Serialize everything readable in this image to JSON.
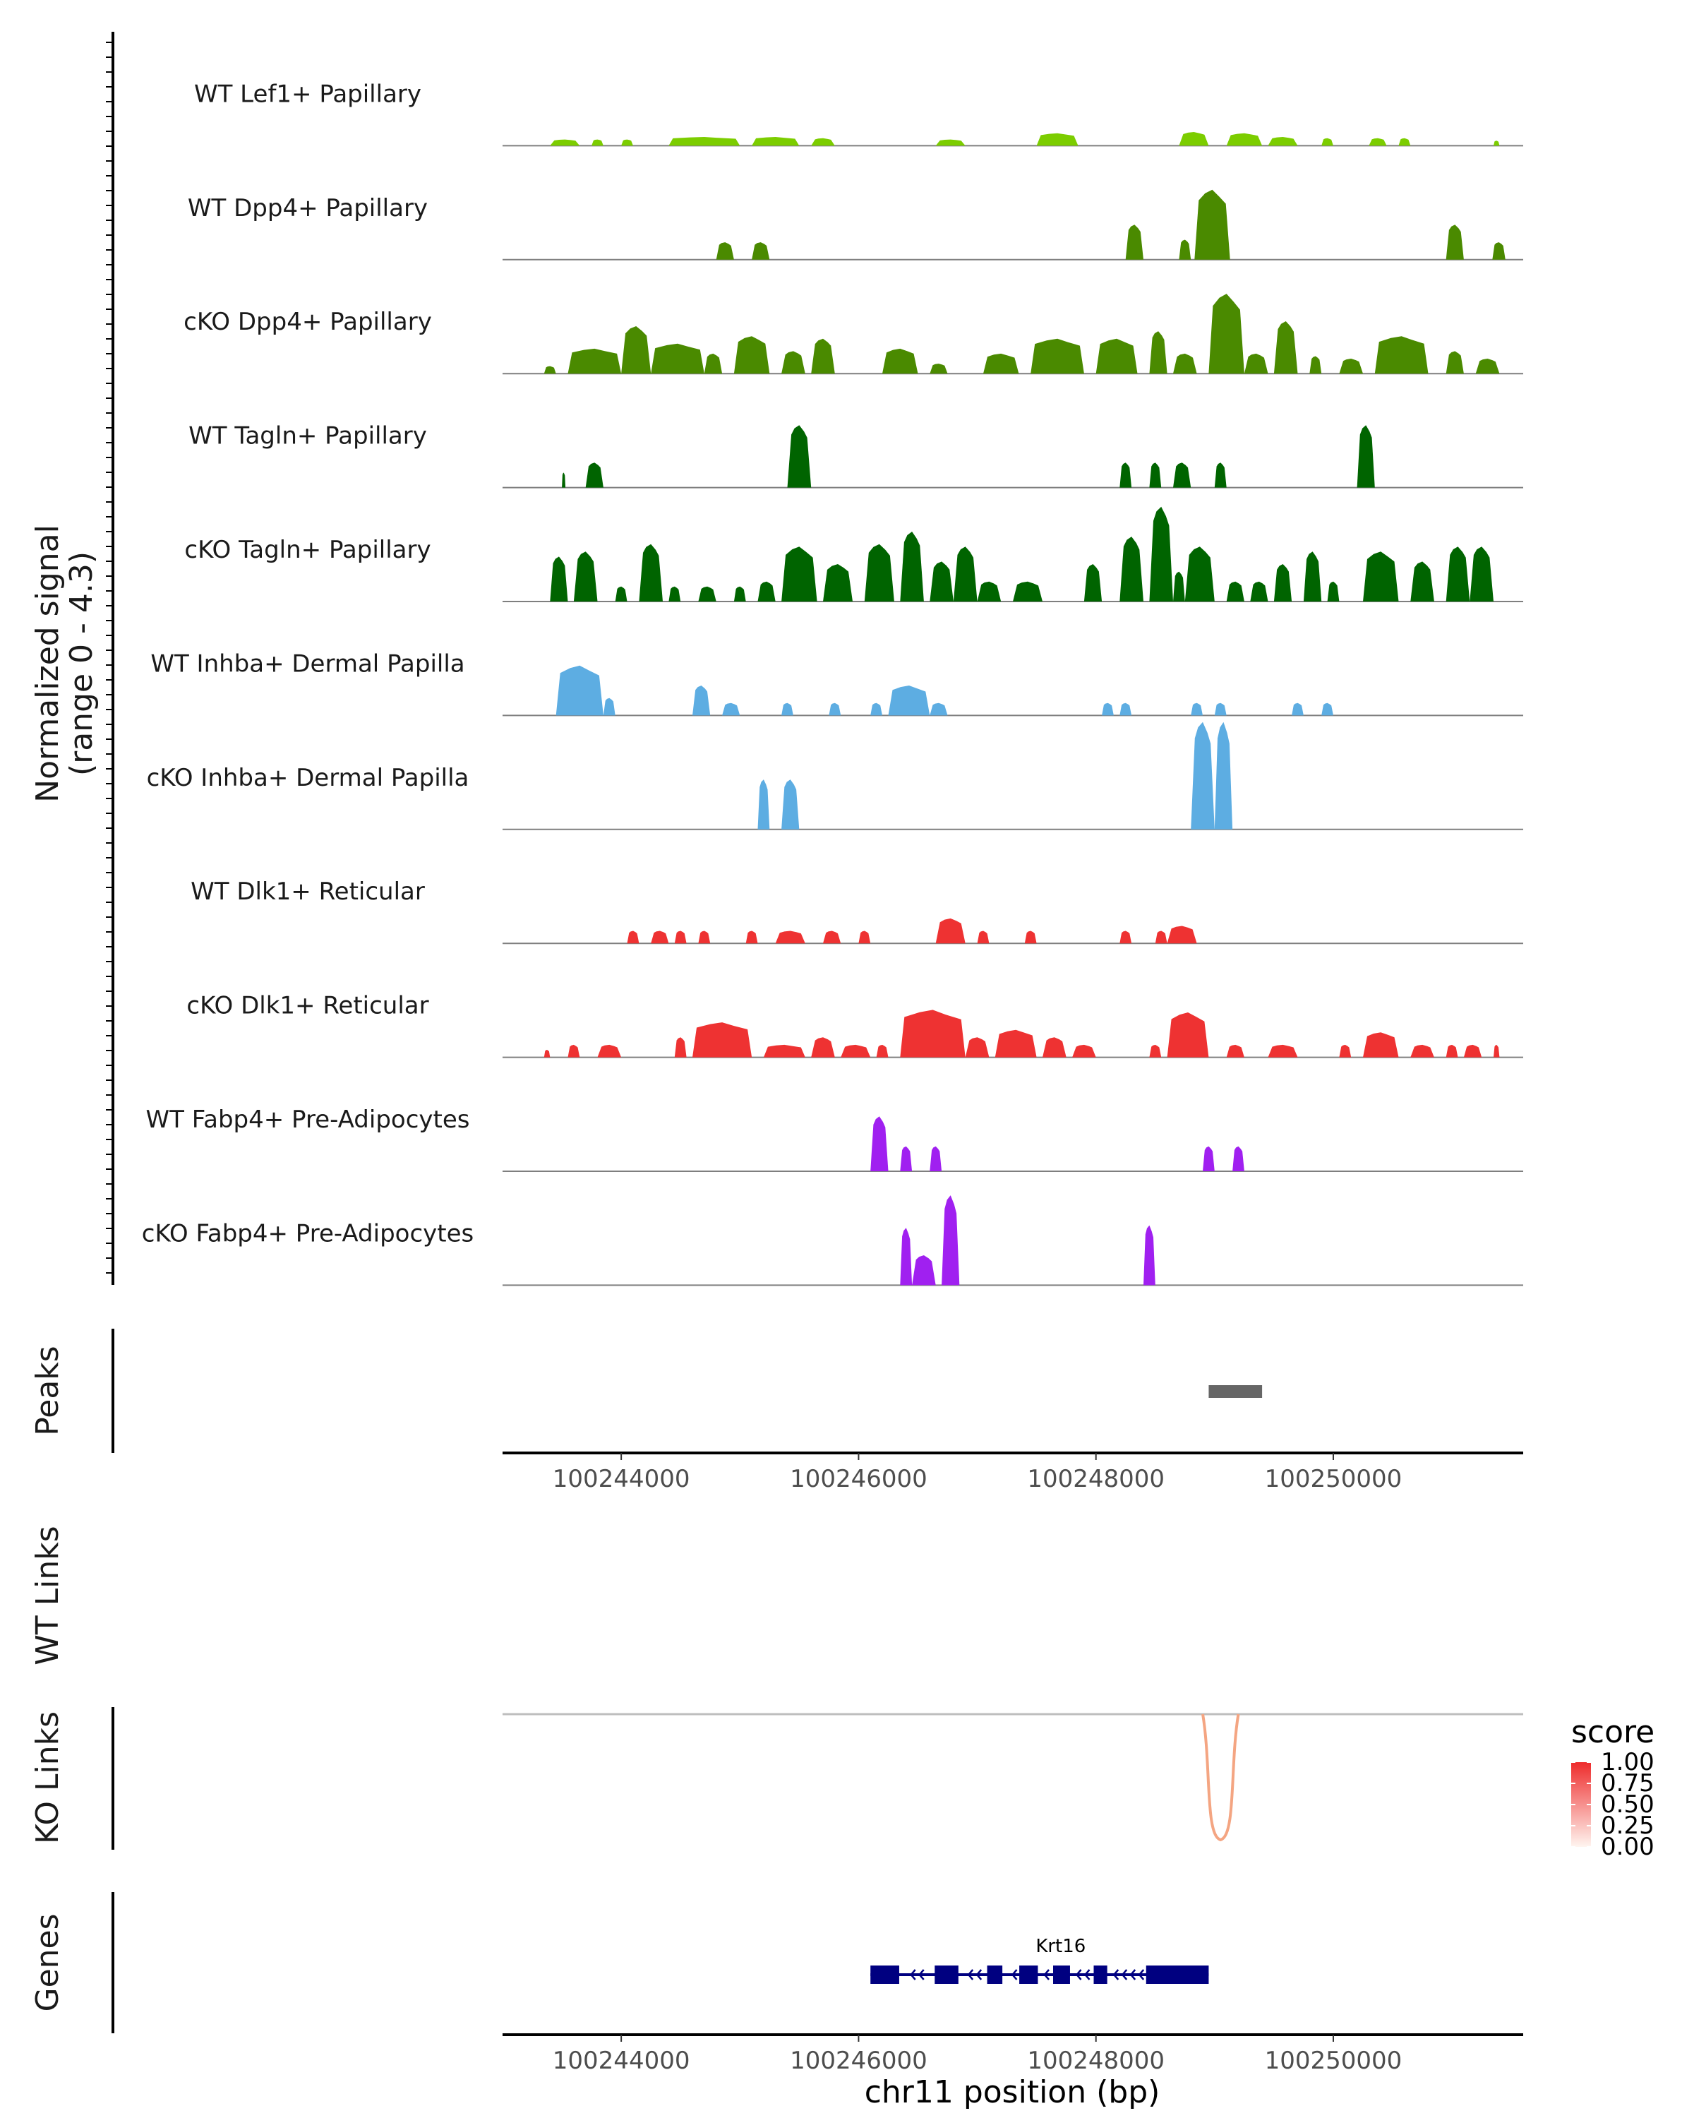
{
  "chart_data": {
    "type": "area",
    "title": "",
    "y_axis_title": "Normalized signal",
    "y_axis_subtitle": "(range 0 - 4.3)",
    "y_range": [
      0,
      4.3
    ],
    "xlabel": "chr11 position (bp)",
    "xlim": [
      100243000,
      100251600
    ],
    "x_ticks": [
      {
        "value": 100244000,
        "label": "100244000"
      },
      {
        "value": 100246000,
        "label": "100246000"
      },
      {
        "value": 100248000,
        "label": "100248000"
      },
      {
        "value": 100250000,
        "label": "100250000"
      }
    ],
    "series": [
      {
        "name": "WT Lef1+ Papillary",
        "color": "#7CCD00",
        "segments": [
          [
            100243400,
            100243650,
            0.25
          ],
          [
            100243750,
            100243850,
            0.25
          ],
          [
            100244000,
            100244100,
            0.25
          ],
          [
            100244400,
            100245000,
            0.35
          ],
          [
            100245100,
            100245500,
            0.35
          ],
          [
            100245600,
            100245800,
            0.3
          ],
          [
            100246650,
            100246900,
            0.25
          ],
          [
            100247500,
            100247850,
            0.5
          ],
          [
            100248700,
            100248950,
            0.55
          ],
          [
            100249100,
            100249400,
            0.5
          ],
          [
            100249450,
            100249700,
            0.35
          ],
          [
            100249900,
            100250000,
            0.3
          ],
          [
            100250300,
            100250450,
            0.3
          ],
          [
            100250550,
            100250650,
            0.3
          ],
          [
            100251350,
            100251400,
            0.2
          ]
        ]
      },
      {
        "name": "WT Dpp4+ Papillary",
        "color": "#4A8A00",
        "segments": [
          [
            100244800,
            100244950,
            0.7
          ],
          [
            100245100,
            100245250,
            0.7
          ],
          [
            100248250,
            100248400,
            1.4
          ],
          [
            100248700,
            100248800,
            0.8
          ],
          [
            100248830,
            100249130,
            2.8
          ],
          [
            100250950,
            100251100,
            1.4
          ],
          [
            100251340,
            100251450,
            0.7
          ]
        ]
      },
      {
        "name": "cKO Dpp4+ Papillary",
        "color": "#4A8A00",
        "segments": [
          [
            100243350,
            100243450,
            0.3
          ],
          [
            100243550,
            100244000,
            1.0
          ],
          [
            100244000,
            100244250,
            1.9
          ],
          [
            100244250,
            100244700,
            1.2
          ],
          [
            100244700,
            100244850,
            0.8
          ],
          [
            100244950,
            100245250,
            1.5
          ],
          [
            100245350,
            100245550,
            0.9
          ],
          [
            100245600,
            100245800,
            1.4
          ],
          [
            100246200,
            100246500,
            1.0
          ],
          [
            100246600,
            100246750,
            0.4
          ],
          [
            100247050,
            100247350,
            0.8
          ],
          [
            100247450,
            100247900,
            1.4
          ],
          [
            100248000,
            100248350,
            1.4
          ],
          [
            100248450,
            100248600,
            1.7
          ],
          [
            100248650,
            100248850,
            0.8
          ],
          [
            100248950,
            100249250,
            3.2
          ],
          [
            100249250,
            100249450,
            0.8
          ],
          [
            100249500,
            100249700,
            2.1
          ],
          [
            100249800,
            100249900,
            0.7
          ],
          [
            100250050,
            100250250,
            0.6
          ],
          [
            100250350,
            100250800,
            1.5
          ],
          [
            100250950,
            100251100,
            0.9
          ],
          [
            100251200,
            100251400,
            0.6
          ]
        ]
      },
      {
        "name": "WT Tagln+ Papillary",
        "color": "#006400",
        "segments": [
          [
            100243500,
            100243530,
            0.6
          ],
          [
            100243700,
            100243850,
            1.0
          ],
          [
            100245400,
            100245600,
            2.5
          ],
          [
            100248200,
            100248300,
            1.0
          ],
          [
            100248450,
            100248550,
            1.0
          ],
          [
            100248650,
            100248800,
            1.0
          ],
          [
            100249000,
            100249100,
            1.0
          ],
          [
            100250200,
            100250350,
            2.5
          ]
        ]
      },
      {
        "name": "cKO Tagln+ Papillary",
        "color": "#006400",
        "segments": [
          [
            100243400,
            100243550,
            1.8
          ],
          [
            100243600,
            100243800,
            2.0
          ],
          [
            100243950,
            100244050,
            0.6
          ],
          [
            100244150,
            100244350,
            2.3
          ],
          [
            100244400,
            100244500,
            0.6
          ],
          [
            100244650,
            100244800,
            0.6
          ],
          [
            100244950,
            100245050,
            0.6
          ],
          [
            100245150,
            100245300,
            0.8
          ],
          [
            100245350,
            100245650,
            2.2
          ],
          [
            100245700,
            100245950,
            1.5
          ],
          [
            100246050,
            100246300,
            2.3
          ],
          [
            100246350,
            100246550,
            2.8
          ],
          [
            100246600,
            100246800,
            1.6
          ],
          [
            100246800,
            100247000,
            2.2
          ],
          [
            100247000,
            100247200,
            0.8
          ],
          [
            100247300,
            100247550,
            0.8
          ],
          [
            100247900,
            100248050,
            1.5
          ],
          [
            100248200,
            100248400,
            2.6
          ],
          [
            100248450,
            100248650,
            3.8
          ],
          [
            100248650,
            100248750,
            1.2
          ],
          [
            100248750,
            100249000,
            2.2
          ],
          [
            100249100,
            100249250,
            0.8
          ],
          [
            100249300,
            100249450,
            0.8
          ],
          [
            100249500,
            100249650,
            1.5
          ],
          [
            100249750,
            100249900,
            2.0
          ],
          [
            100249950,
            100250050,
            0.8
          ],
          [
            100250250,
            100250550,
            2.0
          ],
          [
            100250650,
            100250850,
            1.6
          ],
          [
            100250950,
            100251150,
            2.2
          ],
          [
            100251150,
            100251350,
            2.2
          ]
        ]
      },
      {
        "name": "WT Inhba+ Dermal Papilla",
        "color": "#5DADE2",
        "segments": [
          [
            100243450,
            100243850,
            2.0
          ],
          [
            100243850,
            100243950,
            0.7
          ],
          [
            100244600,
            100244750,
            1.2
          ],
          [
            100244850,
            100245000,
            0.5
          ],
          [
            100245350,
            100245450,
            0.5
          ],
          [
            100245750,
            100245850,
            0.5
          ],
          [
            100246100,
            100246200,
            0.5
          ],
          [
            100246250,
            100246600,
            1.2
          ],
          [
            100246600,
            100246750,
            0.5
          ],
          [
            100248050,
            100248150,
            0.5
          ],
          [
            100248200,
            100248300,
            0.5
          ],
          [
            100248800,
            100248900,
            0.5
          ],
          [
            100249000,
            100249100,
            0.5
          ],
          [
            100249650,
            100249750,
            0.5
          ],
          [
            100249900,
            100250000,
            0.5
          ]
        ]
      },
      {
        "name": "cKO Inhba+ Dermal Papilla",
        "color": "#5DADE2",
        "segments": [
          [
            100245150,
            100245250,
            2.0
          ],
          [
            100245350,
            100245500,
            2.0
          ],
          [
            100248800,
            100249000,
            4.3
          ],
          [
            100249000,
            100249150,
            4.3
          ]
        ]
      },
      {
        "name": "WT Dlk1+ Reticular",
        "color": "#EE3232",
        "segments": [
          [
            100244050,
            100244150,
            0.5
          ],
          [
            100244250,
            100244400,
            0.5
          ],
          [
            100244450,
            100244550,
            0.5
          ],
          [
            100244650,
            100244750,
            0.5
          ],
          [
            100245050,
            100245150,
            0.5
          ],
          [
            100245300,
            100245550,
            0.5
          ],
          [
            100245700,
            100245850,
            0.5
          ],
          [
            100246000,
            100246100,
            0.5
          ],
          [
            100246650,
            100246900,
            1.0
          ],
          [
            100247000,
            100247100,
            0.5
          ],
          [
            100247400,
            100247500,
            0.5
          ],
          [
            100248200,
            100248300,
            0.5
          ],
          [
            100248500,
            100248600,
            0.5
          ],
          [
            100248600,
            100248850,
            0.7
          ]
        ]
      },
      {
        "name": "cKO Dlk1+ Reticular",
        "color": "#EE3232",
        "segments": [
          [
            100243350,
            100243400,
            0.3
          ],
          [
            100243550,
            100243650,
            0.5
          ],
          [
            100243800,
            100244000,
            0.5
          ],
          [
            100244450,
            100244550,
            0.8
          ],
          [
            100244600,
            100245100,
            1.4
          ],
          [
            100245200,
            100245550,
            0.5
          ],
          [
            100245600,
            100245800,
            0.8
          ],
          [
            100245850,
            100246100,
            0.5
          ],
          [
            100246150,
            100246250,
            0.5
          ],
          [
            100246350,
            100246900,
            1.9
          ],
          [
            100246900,
            100247100,
            0.8
          ],
          [
            100247150,
            100247500,
            1.1
          ],
          [
            100247550,
            100247750,
            0.8
          ],
          [
            100247800,
            100248000,
            0.5
          ],
          [
            100248450,
            100248550,
            0.5
          ],
          [
            100248600,
            100248950,
            1.8
          ],
          [
            100249100,
            100249250,
            0.5
          ],
          [
            100249450,
            100249700,
            0.5
          ],
          [
            100250050,
            100250150,
            0.5
          ],
          [
            100250250,
            100250550,
            1.0
          ],
          [
            100250650,
            100250850,
            0.5
          ],
          [
            100250950,
            100251050,
            0.5
          ],
          [
            100251100,
            100251250,
            0.5
          ],
          [
            100251350,
            100251400,
            0.5
          ]
        ]
      },
      {
        "name": "WT Fabp4+ Pre-Adipocytes",
        "color": "#A020F0",
        "segments": [
          [
            100246100,
            100246250,
            2.2
          ],
          [
            100246350,
            100246450,
            1.0
          ],
          [
            100246600,
            100246700,
            1.0
          ],
          [
            100248900,
            100249000,
            1.0
          ],
          [
            100249150,
            100249250,
            1.0
          ]
        ]
      },
      {
        "name": "cKO Fabp4+ Pre-Adipocytes",
        "color": "#A020F0",
        "segments": [
          [
            100246350,
            100246450,
            2.3
          ],
          [
            100246450,
            100246650,
            1.2
          ],
          [
            100246700,
            100246850,
            3.6
          ],
          [
            100248400,
            100248500,
            2.4
          ]
        ]
      }
    ],
    "peaks": {
      "label": "Peaks",
      "regions": [
        [
          100248950,
          100249400
        ]
      ]
    },
    "wt_links": {
      "label": "WT Links",
      "links": []
    },
    "ko_links": {
      "label": "KO Links",
      "links": [
        {
          "start": 100248900,
          "end": 100249200,
          "score": 0.45
        }
      ]
    },
    "genes": {
      "label": "Genes",
      "items": [
        {
          "name": "Krt16",
          "start": 100246100,
          "end": 100248950,
          "strand": "-"
        }
      ]
    },
    "legend": {
      "title": "score",
      "ticks": [
        "1.00",
        "0.75",
        "0.50",
        "0.25",
        "0.00"
      ],
      "low_color": "#FFF5F0",
      "high_color": "#EE2C2C"
    }
  }
}
